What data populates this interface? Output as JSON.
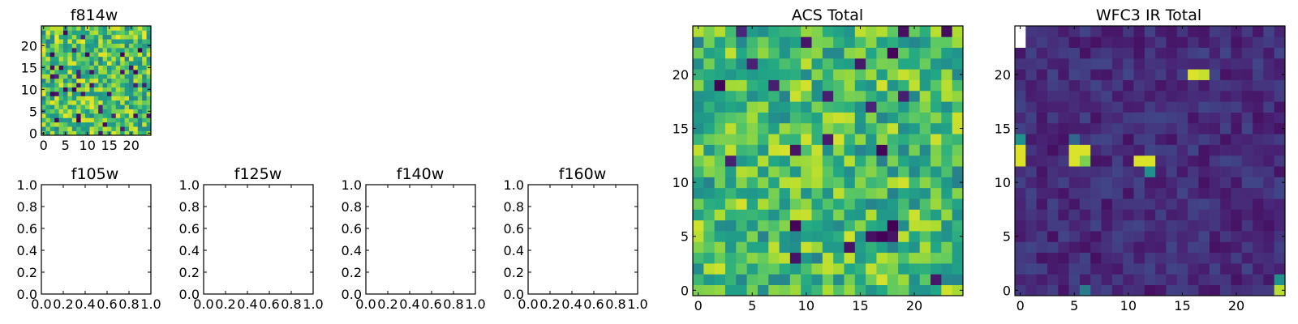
{
  "chart_data": [
    {
      "id": "f814w",
      "type": "heatmap",
      "title": "f814w",
      "grid_size": 25,
      "colormap": "viridis",
      "color_range": [
        0,
        1
      ],
      "xticks": [
        0,
        5,
        10,
        15,
        20
      ],
      "yticks": [
        0,
        5,
        10,
        15,
        20
      ],
      "seed": 814,
      "base": 0.72,
      "noise": 0.26,
      "dark_fraction": 0.05,
      "bright_spots": []
    },
    {
      "id": "f105w",
      "type": "empty",
      "title": "f105w",
      "xticks": [
        "0.0",
        "0.2",
        "0.4",
        "0.6",
        "0.8",
        "1.0"
      ],
      "yticks": [
        "0.0",
        "0.2",
        "0.4",
        "0.6",
        "0.8",
        "1.0"
      ],
      "xlim": [
        0,
        1
      ],
      "ylim": [
        0,
        1
      ]
    },
    {
      "id": "f125w",
      "type": "empty",
      "title": "f125w",
      "xticks": [
        "0.0",
        "0.2",
        "0.4",
        "0.6",
        "0.8",
        "1.0"
      ],
      "yticks": [
        "0.0",
        "0.2",
        "0.4",
        "0.6",
        "0.8",
        "1.0"
      ],
      "xlim": [
        0,
        1
      ],
      "ylim": [
        0,
        1
      ]
    },
    {
      "id": "f140w",
      "type": "empty",
      "title": "f140w",
      "xticks": [
        "0.0",
        "0.2",
        "0.4",
        "0.6",
        "0.8",
        "1.0"
      ],
      "yticks": [
        "0.0",
        "0.2",
        "0.4",
        "0.6",
        "0.8",
        "1.0"
      ],
      "xlim": [
        0,
        1
      ],
      "ylim": [
        0,
        1
      ]
    },
    {
      "id": "f160w",
      "type": "empty",
      "title": "f160w",
      "xticks": [
        "0.0",
        "0.2",
        "0.4",
        "0.6",
        "0.8",
        "1.0"
      ],
      "yticks": [
        "0.0",
        "0.2",
        "0.4",
        "0.6",
        "0.8",
        "1.0"
      ],
      "xlim": [
        0,
        1
      ],
      "ylim": [
        0,
        1
      ]
    },
    {
      "id": "acs-total",
      "type": "heatmap",
      "title": "ACS Total",
      "grid_size": 25,
      "colormap": "viridis",
      "color_range": [
        0,
        1
      ],
      "xticks": [
        0,
        5,
        10,
        15,
        20
      ],
      "yticks": [
        0,
        5,
        10,
        15,
        20
      ],
      "seed": 1234,
      "base": 0.7,
      "noise": 0.24,
      "dark_fraction": 0.04,
      "bright_spots": []
    },
    {
      "id": "wfc3-ir-total",
      "type": "heatmap",
      "title": "WFC3 IR Total",
      "grid_size": 25,
      "colormap": "viridis",
      "color_range": [
        0,
        1
      ],
      "xticks": [
        0,
        5,
        10,
        15,
        20
      ],
      "yticks": [
        0,
        5,
        10,
        15,
        20
      ],
      "seed": 9012,
      "base": 0.16,
      "noise": 0.1,
      "dark_fraction": 0.0,
      "bright_spots": [
        {
          "col": 0,
          "row": 24,
          "value": 1.0,
          "white": true
        },
        {
          "col": 0,
          "row": 23,
          "value": 1.0,
          "white": true
        },
        {
          "col": 16,
          "row": 20,
          "value": 0.95
        },
        {
          "col": 17,
          "row": 20,
          "value": 0.92
        },
        {
          "col": 0,
          "row": 13,
          "value": 0.95
        },
        {
          "col": 0,
          "row": 12,
          "value": 0.95
        },
        {
          "col": 0,
          "row": 14,
          "value": 0.5
        },
        {
          "col": 5,
          "row": 13,
          "value": 0.95
        },
        {
          "col": 6,
          "row": 13,
          "value": 0.95
        },
        {
          "col": 5,
          "row": 12,
          "value": 0.95
        },
        {
          "col": 6,
          "row": 12,
          "value": 0.8
        },
        {
          "col": 5,
          "row": 14,
          "value": 0.4
        },
        {
          "col": 11,
          "row": 12,
          "value": 0.95
        },
        {
          "col": 12,
          "row": 12,
          "value": 0.95
        },
        {
          "col": 12,
          "row": 11,
          "value": 0.5
        },
        {
          "col": 24,
          "row": 0,
          "value": 0.9
        },
        {
          "col": 24,
          "row": 1,
          "value": 0.5
        },
        {
          "col": 6,
          "row": 0,
          "value": 0.45
        }
      ]
    }
  ]
}
